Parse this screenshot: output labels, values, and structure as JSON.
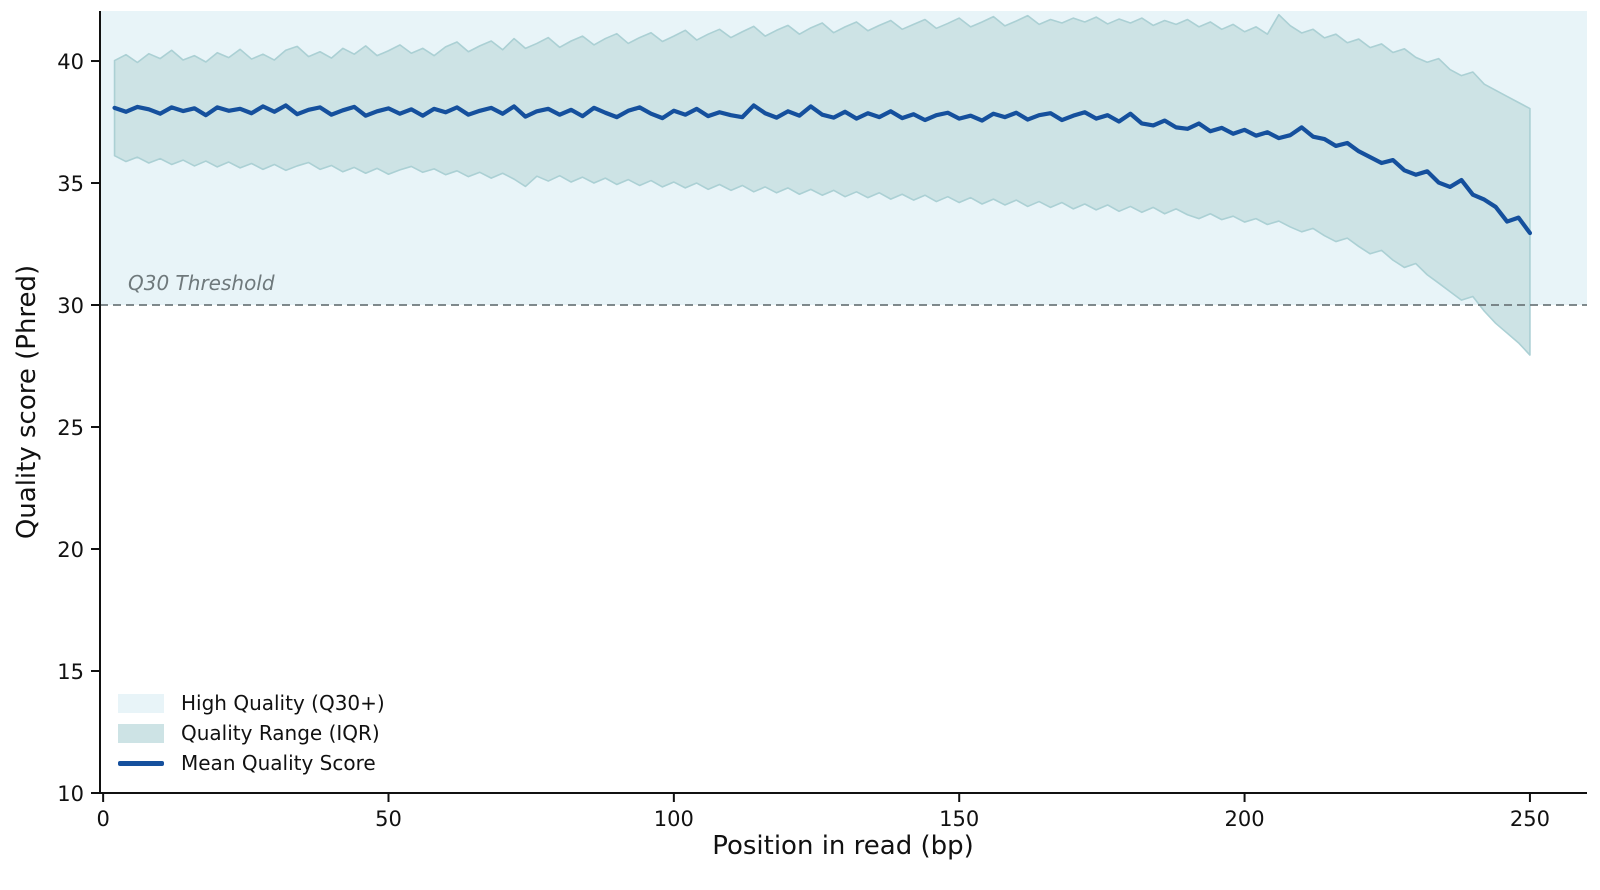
{
  "figure": {
    "xlabel": "Position in read (bp)",
    "ylabel": "Quality score (Phred)",
    "threshold_annotation": "Q30 Threshold",
    "legend": [
      {
        "label": "High Quality (Q30+)",
        "swatch_type": "patch",
        "color": "#e8f4f8"
      },
      {
        "label": "Quality Range (IQR)",
        "swatch_type": "patch",
        "color": "#cde3e5"
      },
      {
        "label": "Mean Quality Score",
        "swatch_type": "line",
        "color": "#15509d"
      }
    ]
  },
  "colors": {
    "high_quality_region": "#e8f4f8",
    "iqr_band_fill": "#cde3e5",
    "iqr_band_edge": "#abd0d4",
    "mean_line": "#15509d",
    "threshold_line": "#6f797c",
    "annotation_text": "#6f797c",
    "axis": "#111111"
  },
  "chart_data": {
    "type": "line",
    "title": "",
    "xlabel": "Position in read (bp)",
    "ylabel": "Quality score (Phred)",
    "xlim": [
      -0.55,
      260.0
    ],
    "ylim": [
      10,
      42.05
    ],
    "xticks": [
      0,
      50,
      100,
      150,
      200,
      250
    ],
    "yticks": [
      10,
      15,
      20,
      25,
      30,
      35,
      40
    ],
    "grid": false,
    "legend_position": "lower left",
    "threshold": {
      "y": 30,
      "label": "Q30 Threshold",
      "style": "dashed",
      "color": "#6f797c"
    },
    "high_quality_region": {
      "from": 30,
      "to": 42.05,
      "color": "#e8f4f8"
    },
    "x": [
      2,
      4,
      6,
      8,
      10,
      12,
      14,
      16,
      18,
      20,
      22,
      24,
      26,
      28,
      30,
      32,
      34,
      36,
      38,
      40,
      42,
      44,
      46,
      48,
      50,
      52,
      54,
      56,
      58,
      60,
      62,
      64,
      66,
      68,
      70,
      72,
      74,
      76,
      78,
      80,
      82,
      84,
      86,
      88,
      90,
      92,
      94,
      96,
      98,
      100,
      102,
      104,
      106,
      108,
      110,
      112,
      114,
      116,
      118,
      120,
      122,
      124,
      126,
      128,
      130,
      132,
      134,
      136,
      138,
      140,
      142,
      144,
      146,
      148,
      150,
      152,
      154,
      156,
      158,
      160,
      162,
      164,
      166,
      168,
      170,
      172,
      174,
      176,
      178,
      180,
      182,
      184,
      186,
      188,
      190,
      192,
      194,
      196,
      198,
      200,
      202,
      204,
      206,
      208,
      210,
      212,
      214,
      216,
      218,
      220,
      222,
      224,
      226,
      228,
      230,
      232,
      234,
      236,
      238,
      240,
      242,
      244,
      246,
      248,
      250
    ],
    "series": [
      {
        "name": "Mean Quality Score",
        "role": "mean",
        "color": "#15509d",
        "values": [
          38.08,
          37.92,
          38.12,
          38.02,
          37.84,
          38.1,
          37.95,
          38.06,
          37.78,
          38.1,
          37.96,
          38.04,
          37.86,
          38.14,
          37.92,
          38.18,
          37.82,
          38.0,
          38.1,
          37.8,
          37.98,
          38.12,
          37.76,
          37.94,
          38.06,
          37.84,
          38.02,
          37.76,
          38.04,
          37.9,
          38.1,
          37.8,
          37.96,
          38.08,
          37.84,
          38.14,
          37.72,
          37.94,
          38.04,
          37.8,
          38.0,
          37.74,
          38.08,
          37.88,
          37.7,
          37.96,
          38.1,
          37.84,
          37.66,
          37.96,
          37.8,
          38.04,
          37.74,
          37.9,
          37.78,
          37.7,
          38.18,
          37.86,
          37.68,
          37.94,
          37.76,
          38.14,
          37.8,
          37.68,
          37.92,
          37.64,
          37.86,
          37.7,
          37.94,
          37.66,
          37.82,
          37.58,
          37.78,
          37.88,
          37.64,
          37.76,
          37.56,
          37.84,
          37.7,
          37.88,
          37.6,
          37.78,
          37.86,
          37.58,
          37.76,
          37.9,
          37.64,
          37.78,
          37.52,
          37.84,
          37.44,
          37.36,
          37.56,
          37.28,
          37.22,
          37.44,
          37.12,
          37.26,
          37.02,
          37.18,
          36.94,
          37.08,
          36.84,
          36.96,
          37.28,
          36.9,
          36.8,
          36.52,
          36.64,
          36.3,
          36.06,
          35.82,
          35.94,
          35.52,
          35.34,
          35.48,
          35.02,
          34.84,
          35.12,
          34.52,
          34.32,
          34.02,
          33.42,
          33.58,
          32.95
        ]
      },
      {
        "name": "IQR upper (Q3)",
        "role": "band_upper",
        "color": "#cde3e5",
        "values": [
          40.02,
          40.26,
          39.94,
          40.3,
          40.1,
          40.44,
          40.04,
          40.22,
          39.96,
          40.34,
          40.14,
          40.48,
          40.08,
          40.28,
          40.04,
          40.44,
          40.6,
          40.18,
          40.38,
          40.12,
          40.52,
          40.28,
          40.62,
          40.22,
          40.42,
          40.66,
          40.32,
          40.52,
          40.22,
          40.58,
          40.78,
          40.38,
          40.62,
          40.82,
          40.46,
          40.92,
          40.52,
          40.72,
          40.96,
          40.56,
          40.82,
          41.02,
          40.66,
          40.92,
          41.12,
          40.72,
          40.96,
          41.16,
          40.8,
          41.02,
          41.26,
          40.86,
          41.1,
          41.3,
          40.96,
          41.2,
          41.42,
          41.02,
          41.26,
          41.46,
          41.1,
          41.36,
          41.56,
          41.16,
          41.4,
          41.6,
          41.24,
          41.46,
          41.66,
          41.3,
          41.5,
          41.7,
          41.34,
          41.54,
          41.76,
          41.4,
          41.6,
          41.82,
          41.44,
          41.64,
          41.86,
          41.5,
          41.7,
          41.56,
          41.76,
          41.6,
          41.8,
          41.52,
          41.72,
          41.56,
          41.76,
          41.46,
          41.66,
          41.5,
          41.7,
          41.4,
          41.6,
          41.3,
          41.5,
          41.2,
          41.4,
          41.1,
          41.9,
          41.45,
          41.15,
          41.3,
          40.95,
          41.1,
          40.75,
          40.9,
          40.55,
          40.7,
          40.35,
          40.5,
          40.15,
          39.95,
          40.1,
          39.65,
          39.4,
          39.55,
          39.05,
          38.8,
          38.55,
          38.3,
          38.05
        ]
      },
      {
        "name": "IQR lower (Q1)",
        "role": "band_lower",
        "color": "#cde3e5",
        "values": [
          36.12,
          35.88,
          36.06,
          35.82,
          36.0,
          35.76,
          35.94,
          35.7,
          35.9,
          35.66,
          35.86,
          35.62,
          35.8,
          35.56,
          35.76,
          35.52,
          35.7,
          35.84,
          35.56,
          35.72,
          35.46,
          35.64,
          35.4,
          35.6,
          35.36,
          35.54,
          35.68,
          35.44,
          35.58,
          35.34,
          35.5,
          35.26,
          35.44,
          35.2,
          35.4,
          35.16,
          34.86,
          35.28,
          35.08,
          35.3,
          35.04,
          35.24,
          35.0,
          35.2,
          34.94,
          35.14,
          34.9,
          35.1,
          34.84,
          35.04,
          34.8,
          35.0,
          34.74,
          34.94,
          34.7,
          34.9,
          34.64,
          34.84,
          34.6,
          34.8,
          34.54,
          34.74,
          34.5,
          34.7,
          34.44,
          34.64,
          34.4,
          34.6,
          34.34,
          34.54,
          34.3,
          34.5,
          34.24,
          34.44,
          34.2,
          34.4,
          34.14,
          34.34,
          34.1,
          34.3,
          34.04,
          34.24,
          34.0,
          34.2,
          33.94,
          34.14,
          33.9,
          34.1,
          33.84,
          34.04,
          33.8,
          34.0,
          33.74,
          33.94,
          33.7,
          33.54,
          33.74,
          33.5,
          33.64,
          33.4,
          33.54,
          33.3,
          33.44,
          33.2,
          33.0,
          33.14,
          32.84,
          32.6,
          32.74,
          32.4,
          32.1,
          32.24,
          31.84,
          31.54,
          31.7,
          31.24,
          30.9,
          30.55,
          30.2,
          30.35,
          29.75,
          29.25,
          28.85,
          28.45,
          27.95
        ]
      }
    ]
  }
}
